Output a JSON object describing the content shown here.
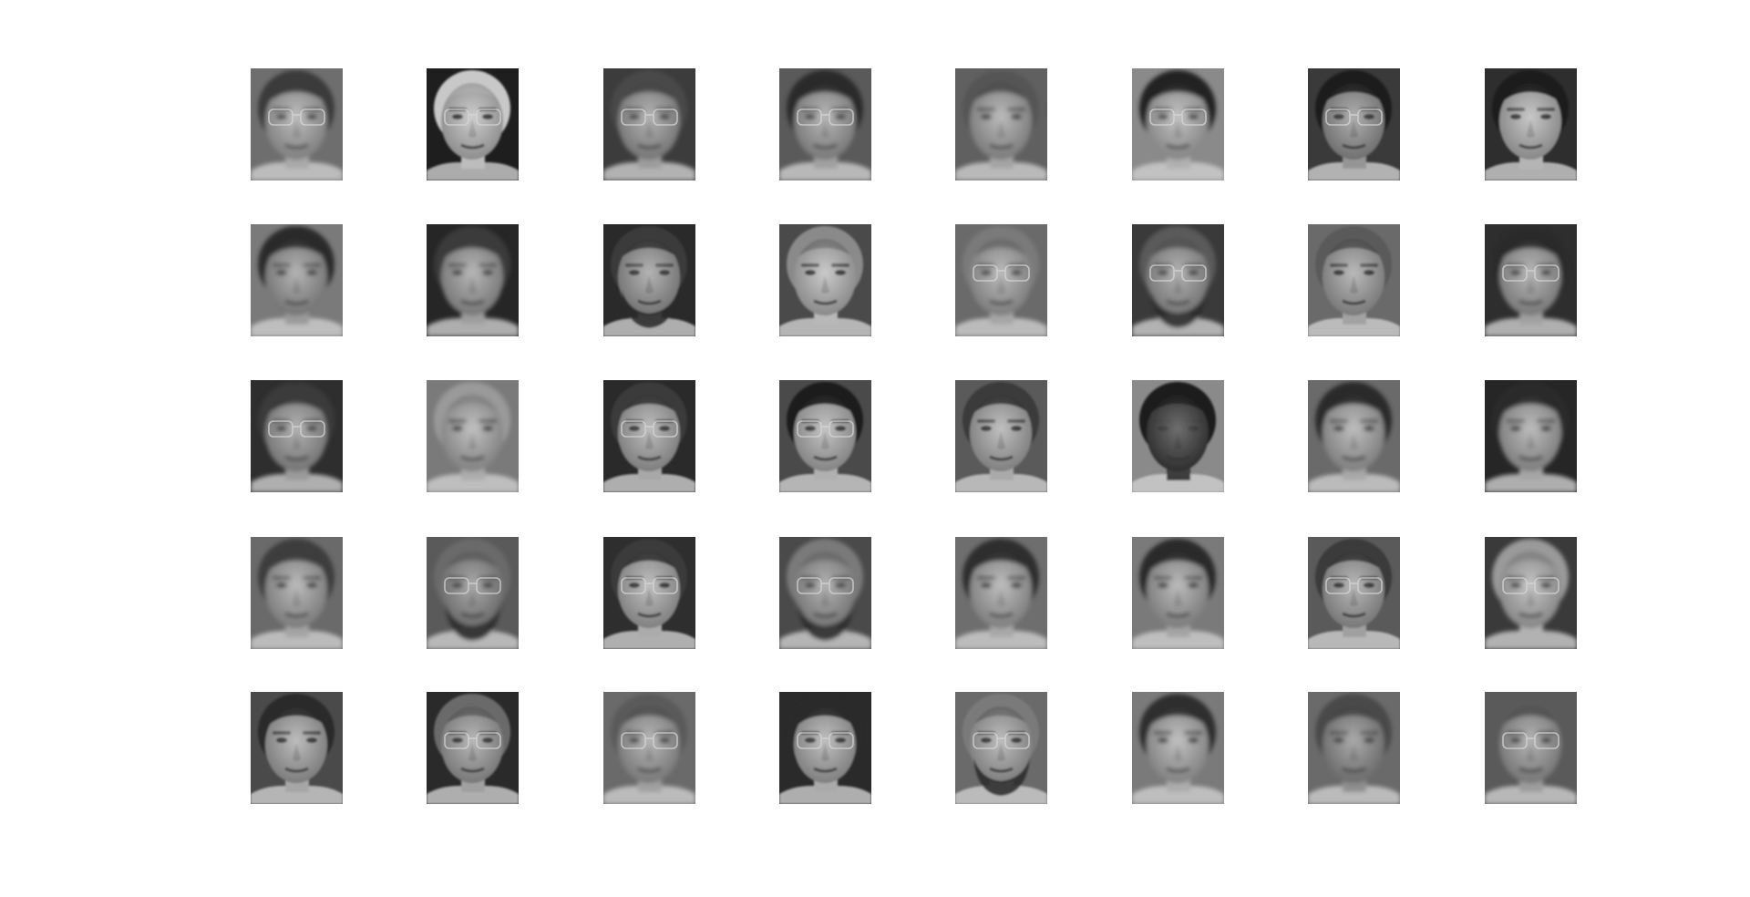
{
  "figure": {
    "background": "#ffffff",
    "grid": {
      "rows": 5,
      "columns": 8
    },
    "faces": [
      {
        "row": 1,
        "col": 1,
        "bg": "#6e6e6e",
        "hair": "#3a3a3a",
        "skin": "#a9a9a9",
        "glasses": true,
        "beard": false,
        "blur": true
      },
      {
        "row": 1,
        "col": 2,
        "bg": "#1e1e1e",
        "hair": "#c8c8c8",
        "skin": "#bdbdbd",
        "glasses": true,
        "beard": false,
        "blur": false
      },
      {
        "row": 1,
        "col": 3,
        "bg": "#3c3c3c",
        "hair": "#4a4a4a",
        "skin": "#9c9c9c",
        "glasses": true,
        "beard": false,
        "blur": true
      },
      {
        "row": 1,
        "col": 4,
        "bg": "#5a5a5a",
        "hair": "#2a2a2a",
        "skin": "#a0a0a0",
        "glasses": true,
        "beard": false,
        "blur": true
      },
      {
        "row": 1,
        "col": 5,
        "bg": "#606060",
        "hair": "#555555",
        "skin": "#a4a4a4",
        "glasses": false,
        "beard": false,
        "blur": true
      },
      {
        "row": 1,
        "col": 6,
        "bg": "#8a8a8a",
        "hair": "#222222",
        "skin": "#b0b0b0",
        "glasses": true,
        "beard": false,
        "blur": true
      },
      {
        "row": 1,
        "col": 7,
        "bg": "#3a3a3a",
        "hair": "#1e1e1e",
        "skin": "#959595",
        "glasses": true,
        "beard": false,
        "blur": false
      },
      {
        "row": 1,
        "col": 8,
        "bg": "#2e2e2e",
        "hair": "#1a1a1a",
        "skin": "#b5b5b5",
        "glasses": false,
        "beard": false,
        "blur": false
      },
      {
        "row": 2,
        "col": 1,
        "bg": "#7a7a7a",
        "hair": "#2c2c2c",
        "skin": "#9a9a9a",
        "glasses": false,
        "beard": false,
        "blur": true
      },
      {
        "row": 2,
        "col": 2,
        "bg": "#262626",
        "hair": "#3a3a3a",
        "skin": "#9e9e9e",
        "glasses": false,
        "beard": false,
        "blur": true
      },
      {
        "row": 2,
        "col": 3,
        "bg": "#2a2a2a",
        "hair": "#3a3a3a",
        "skin": "#9a9a9a",
        "glasses": false,
        "beard": true,
        "blur": false
      },
      {
        "row": 2,
        "col": 4,
        "bg": "#4a4a4a",
        "hair": "#8a8a8a",
        "skin": "#b8b8b8",
        "glasses": false,
        "beard": false,
        "blur": false
      },
      {
        "row": 2,
        "col": 5,
        "bg": "#6a6a6a",
        "hair": "#7a7a7a",
        "skin": "#a6a6a6",
        "glasses": true,
        "beard": false,
        "blur": true
      },
      {
        "row": 2,
        "col": 6,
        "bg": "#3a3a3a",
        "hair": "#5a5a5a",
        "skin": "#9a9a9a",
        "glasses": true,
        "beard": true,
        "blur": true
      },
      {
        "row": 2,
        "col": 7,
        "bg": "#6a6a6a",
        "hair": "#5a5a5a",
        "skin": "#a2a2a2",
        "glasses": false,
        "beard": false,
        "blur": false
      },
      {
        "row": 2,
        "col": 8,
        "bg": "#2e2e2e",
        "hair": "#2a2a2a",
        "skin": "#a0a0a0",
        "glasses": true,
        "beard": false,
        "blur": true
      },
      {
        "row": 3,
        "col": 1,
        "bg": "#2e2e2e",
        "hair": "#3a3a3a",
        "skin": "#9a9a9a",
        "glasses": true,
        "beard": false,
        "blur": true
      },
      {
        "row": 3,
        "col": 2,
        "bg": "#7a7a7a",
        "hair": "#9a9a9a",
        "skin": "#acacac",
        "glasses": false,
        "beard": false,
        "blur": true
      },
      {
        "row": 3,
        "col": 3,
        "bg": "#2a2a2a",
        "hair": "#3a3a3a",
        "skin": "#a8a8a8",
        "glasses": true,
        "beard": false,
        "blur": false
      },
      {
        "row": 3,
        "col": 4,
        "bg": "#4a4a4a",
        "hair": "#1c1c1c",
        "skin": "#b0b0b0",
        "glasses": true,
        "beard": false,
        "blur": false
      },
      {
        "row": 3,
        "col": 5,
        "bg": "#5a5a5a",
        "hair": "#3a3a3a",
        "skin": "#aaaaaa",
        "glasses": false,
        "beard": false,
        "blur": false
      },
      {
        "row": 3,
        "col": 6,
        "bg": "#8a8a8a",
        "hair": "#1a1a1a",
        "skin": "#3e3e3e",
        "glasses": false,
        "beard": false,
        "blur": false
      },
      {
        "row": 3,
        "col": 7,
        "bg": "#6a6a6a",
        "hair": "#2a2a2a",
        "skin": "#a8a8a8",
        "glasses": false,
        "beard": false,
        "blur": true
      },
      {
        "row": 3,
        "col": 8,
        "bg": "#262626",
        "hair": "#2a2a2a",
        "skin": "#a6a6a6",
        "glasses": false,
        "beard": false,
        "blur": true
      },
      {
        "row": 4,
        "col": 1,
        "bg": "#6a6a6a",
        "hair": "#3e3e3e",
        "skin": "#a4a4a4",
        "glasses": false,
        "beard": false,
        "blur": true
      },
      {
        "row": 4,
        "col": 2,
        "bg": "#5a5a5a",
        "hair": "#6a6a6a",
        "skin": "#8e8e8e",
        "glasses": true,
        "beard": true,
        "blur": true
      },
      {
        "row": 4,
        "col": 3,
        "bg": "#2e2e2e",
        "hair": "#3a3a3a",
        "skin": "#ababab",
        "glasses": true,
        "beard": false,
        "blur": false
      },
      {
        "row": 4,
        "col": 4,
        "bg": "#4a4a4a",
        "hair": "#7a7a7a",
        "skin": "#9a9a9a",
        "glasses": true,
        "beard": true,
        "blur": true
      },
      {
        "row": 4,
        "col": 5,
        "bg": "#6e6e6e",
        "hair": "#2e2e2e",
        "skin": "#a8a8a8",
        "glasses": false,
        "beard": false,
        "blur": true
      },
      {
        "row": 4,
        "col": 6,
        "bg": "#7a7a7a",
        "hair": "#2a2a2a",
        "skin": "#a4a4a4",
        "glasses": false,
        "beard": false,
        "blur": true
      },
      {
        "row": 4,
        "col": 7,
        "bg": "#5a5a5a",
        "hair": "#3a3a3a",
        "skin": "#a0a0a0",
        "glasses": true,
        "beard": false,
        "blur": false
      },
      {
        "row": 4,
        "col": 8,
        "bg": "#3a3a3a",
        "hair": "#9a9a9a",
        "skin": "#b2b2b2",
        "glasses": true,
        "beard": false,
        "blur": true
      },
      {
        "row": 5,
        "col": 1,
        "bg": "#4a4a4a",
        "hair": "#2a2a2a",
        "skin": "#a6a6a6",
        "glasses": false,
        "beard": false,
        "blur": false
      },
      {
        "row": 5,
        "col": 2,
        "bg": "#2a2a2a",
        "hair": "#6a6a6a",
        "skin": "#a0a0a0",
        "glasses": true,
        "beard": false,
        "blur": false
      },
      {
        "row": 5,
        "col": 3,
        "bg": "#6a6a6a",
        "hair": "#5a5a5a",
        "skin": "#a0a0a0",
        "glasses": true,
        "beard": false,
        "blur": true
      },
      {
        "row": 5,
        "col": 4,
        "bg": "#2a2a2a",
        "hair": "#2a2a2a",
        "skin": "#aaaaaa",
        "glasses": true,
        "beard": false,
        "blur": false
      },
      {
        "row": 5,
        "col": 5,
        "bg": "#6a6a6a",
        "hair": "#7a7a7a",
        "skin": "#a8a8a8",
        "glasses": true,
        "beard": true,
        "blur": false
      },
      {
        "row": 5,
        "col": 6,
        "bg": "#7a7a7a",
        "hair": "#2e2e2e",
        "skin": "#acacac",
        "glasses": false,
        "beard": false,
        "blur": true
      },
      {
        "row": 5,
        "col": 7,
        "bg": "#6a6a6a",
        "hair": "#4a4a4a",
        "skin": "#8e8e8e",
        "glasses": false,
        "beard": false,
        "blur": true
      },
      {
        "row": 5,
        "col": 8,
        "bg": "#5a5a5a",
        "hair": "#5a5a5a",
        "skin": "#9c9c9c",
        "glasses": true,
        "beard": false,
        "blur": true
      }
    ]
  }
}
